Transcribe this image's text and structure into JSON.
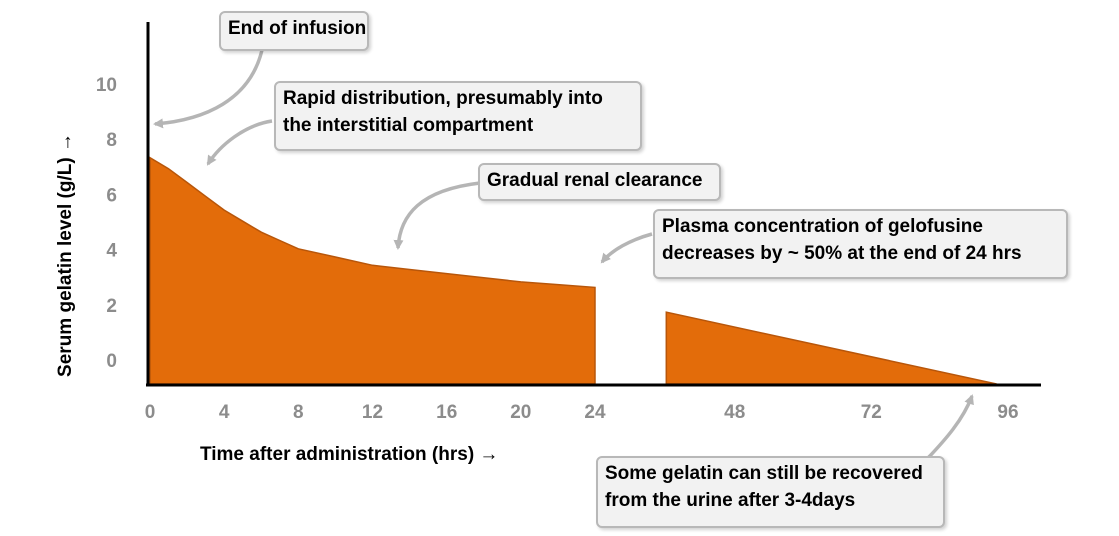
{
  "chart_data": {
    "type": "area",
    "xlabel": "Time after administration (hrs) →",
    "ylabel": "Serum gelatin level (g/L) →",
    "x_ticks": [
      "0",
      "4",
      "8",
      "12",
      "16",
      "20",
      "24",
      "48",
      "72",
      "96"
    ],
    "y_ticks": [
      "0",
      "2",
      "4",
      "6",
      "8",
      "10"
    ],
    "axis_break": "between 24 and 48 hrs",
    "fill_color": "#e36c0a",
    "series": [
      {
        "segment": "early",
        "x": [
          0,
          1,
          2,
          3,
          4,
          5,
          6,
          7,
          8,
          10,
          12,
          14,
          16,
          18,
          20,
          22,
          24
        ],
        "y": [
          8.2,
          7.8,
          7.3,
          6.8,
          6.3,
          5.9,
          5.5,
          5.2,
          4.9,
          4.6,
          4.3,
          4.15,
          4.0,
          3.85,
          3.7,
          3.6,
          3.5
        ]
      },
      {
        "segment": "late",
        "x": [
          36,
          94
        ],
        "y": [
          2.6,
          0.0
        ]
      }
    ],
    "annotations": [
      {
        "id": "end-of-infusion",
        "lines": [
          "End of infusion"
        ]
      },
      {
        "id": "rapid-distribution",
        "lines": [
          "Rapid distribution, presumably into",
          "the interstitial compartment"
        ]
      },
      {
        "id": "renal-clearance",
        "lines": [
          "Gradual renal clearance"
        ]
      },
      {
        "id": "plasma-concentration",
        "lines": [
          "Plasma concentration of gelofusine",
          "decreases by ~ 50% at the end of 24 hrs"
        ]
      },
      {
        "id": "urine-recovery",
        "lines": [
          "Some gelatin can still be recovered",
          "from the urine after 3-4days"
        ]
      }
    ]
  }
}
